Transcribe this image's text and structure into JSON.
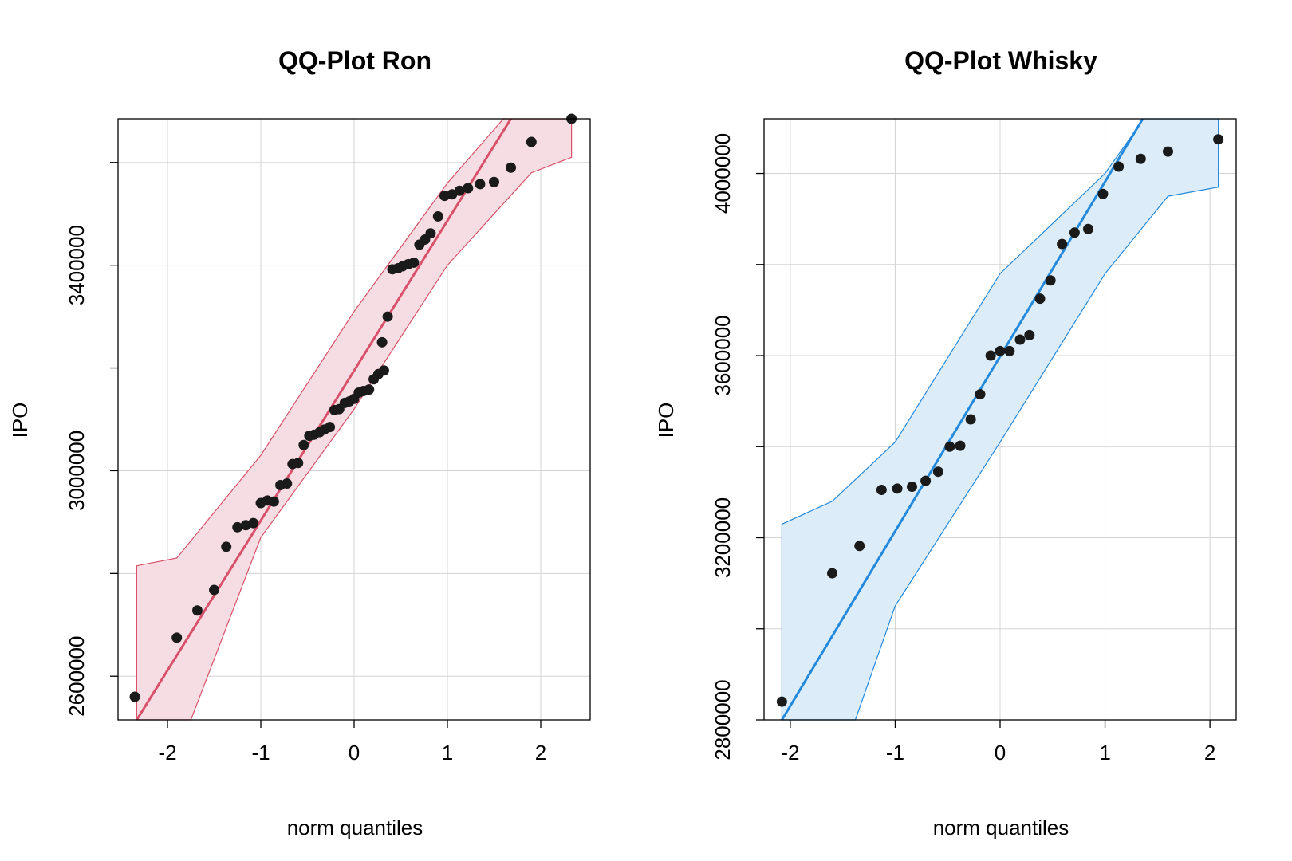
{
  "chart_data": [
    {
      "type": "scatter",
      "title": "QQ-Plot Ron",
      "xlabel": "norm quantiles",
      "ylabel": "IPO",
      "xlim": [
        -2.53,
        2.53
      ],
      "ylim": [
        2515000,
        3685000
      ],
      "xticks": [
        -2,
        -1,
        0,
        1,
        2
      ],
      "xtick_labels": [
        "-2",
        "-1",
        "0",
        "1",
        "2"
      ],
      "yticks": [
        2600000,
        3000000,
        3400000
      ],
      "ytick_labels": [
        "2600000",
        "3000000",
        "3400000"
      ],
      "grid_y": [
        2600000,
        2800000,
        3000000,
        3200000,
        3400000,
        3600000
      ],
      "grid": true,
      "color": "#d9506a",
      "band_fill": "#f6dde3",
      "reference_line": {
        "x": [
          -2.33,
          1.68
        ],
        "y": [
          2515000,
          3685000
        ]
      },
      "envelope_lower": [
        {
          "x": -2.33,
          "y": 2515000
        },
        {
          "x": -1.75,
          "y": 2515000
        },
        {
          "x": -1.0,
          "y": 2870000
        },
        {
          "x": 0.0,
          "y": 3120000
        },
        {
          "x": 1.0,
          "y": 3400000
        },
        {
          "x": 1.9,
          "y": 3580000
        },
        {
          "x": 2.33,
          "y": 3610000
        }
      ],
      "envelope_upper": [
        {
          "x": 2.33,
          "y": 3685000
        },
        {
          "x": 1.6,
          "y": 3685000
        },
        {
          "x": 1.0,
          "y": 3560000
        },
        {
          "x": 0.0,
          "y": 3310000
        },
        {
          "x": -1.0,
          "y": 3030000
        },
        {
          "x": -1.9,
          "y": 2830000
        },
        {
          "x": -2.33,
          "y": 2815000
        }
      ],
      "points": [
        {
          "x": -2.35,
          "y": 2560000
        },
        {
          "x": -1.9,
          "y": 2675000
        },
        {
          "x": -1.68,
          "y": 2728000
        },
        {
          "x": -1.5,
          "y": 2768000
        },
        {
          "x": -1.37,
          "y": 2852000
        },
        {
          "x": -1.25,
          "y": 2890000
        },
        {
          "x": -1.16,
          "y": 2894000
        },
        {
          "x": -1.08,
          "y": 2898000
        },
        {
          "x": -1.0,
          "y": 2937000
        },
        {
          "x": -0.93,
          "y": 2942000
        },
        {
          "x": -0.86,
          "y": 2940000
        },
        {
          "x": -0.79,
          "y": 2972000
        },
        {
          "x": -0.72,
          "y": 2975000
        },
        {
          "x": -0.66,
          "y": 3013000
        },
        {
          "x": -0.6,
          "y": 3015000
        },
        {
          "x": -0.54,
          "y": 3050000
        },
        {
          "x": -0.48,
          "y": 3068000
        },
        {
          "x": -0.43,
          "y": 3070000
        },
        {
          "x": -0.37,
          "y": 3075000
        },
        {
          "x": -0.32,
          "y": 3080000
        },
        {
          "x": -0.26,
          "y": 3085000
        },
        {
          "x": -0.21,
          "y": 3118000
        },
        {
          "x": -0.16,
          "y": 3120000
        },
        {
          "x": -0.1,
          "y": 3132000
        },
        {
          "x": -0.05,
          "y": 3135000
        },
        {
          "x": 0.0,
          "y": 3140000
        },
        {
          "x": 0.05,
          "y": 3152000
        },
        {
          "x": 0.1,
          "y": 3155000
        },
        {
          "x": 0.16,
          "y": 3158000
        },
        {
          "x": 0.21,
          "y": 3178000
        },
        {
          "x": 0.26,
          "y": 3188000
        },
        {
          "x": 0.32,
          "y": 3195000
        },
        {
          "x": 0.3,
          "y": 3250000
        },
        {
          "x": 0.36,
          "y": 3300000
        },
        {
          "x": 0.41,
          "y": 3392000
        },
        {
          "x": 0.47,
          "y": 3394000
        },
        {
          "x": 0.52,
          "y": 3398000
        },
        {
          "x": 0.58,
          "y": 3402000
        },
        {
          "x": 0.64,
          "y": 3405000
        },
        {
          "x": 0.7,
          "y": 3440000
        },
        {
          "x": 0.76,
          "y": 3450000
        },
        {
          "x": 0.82,
          "y": 3462000
        },
        {
          "x": 0.9,
          "y": 3495000
        },
        {
          "x": 0.97,
          "y": 3535000
        },
        {
          "x": 1.05,
          "y": 3538000
        },
        {
          "x": 1.13,
          "y": 3545000
        },
        {
          "x": 1.22,
          "y": 3550000
        },
        {
          "x": 1.35,
          "y": 3558000
        },
        {
          "x": 1.5,
          "y": 3562000
        },
        {
          "x": 1.68,
          "y": 3590000
        },
        {
          "x": 1.9,
          "y": 3640000
        },
        {
          "x": 2.33,
          "y": 3685000
        }
      ]
    },
    {
      "type": "scatter",
      "title": "QQ-Plot Whisky",
      "xlabel": "norm quantiles",
      "ylabel": "IPO",
      "xlim": [
        -2.25,
        2.25
      ],
      "ylim": [
        2800000,
        4120000
      ],
      "xticks": [
        -2,
        -1,
        0,
        1,
        2
      ],
      "xtick_labels": [
        "-2",
        "-1",
        "0",
        "1",
        "2"
      ],
      "yticks": [
        2800000,
        3200000,
        3600000,
        4000000
      ],
      "ytick_labels": [
        "2800000",
        "3200000",
        "3600000",
        "4000000"
      ],
      "grid_y": [
        2800000,
        3000000,
        3200000,
        3400000,
        3600000,
        3800000,
        4000000
      ],
      "grid": true,
      "color": "#2389dc",
      "band_fill": "#dcedf9",
      "reference_line": {
        "x": [
          -2.08,
          1.36
        ],
        "y": [
          2800000,
          4120000
        ]
      },
      "envelope_lower": [
        {
          "x": -2.08,
          "y": 2800000
        },
        {
          "x": -1.38,
          "y": 2800000
        },
        {
          "x": -1.0,
          "y": 3050000
        },
        {
          "x": 0.0,
          "y": 3410000
        },
        {
          "x": 1.0,
          "y": 3780000
        },
        {
          "x": 1.6,
          "y": 3950000
        },
        {
          "x": 2.08,
          "y": 3970000
        }
      ],
      "envelope_upper": [
        {
          "x": 2.08,
          "y": 4120000
        },
        {
          "x": 1.37,
          "y": 4120000
        },
        {
          "x": 1.0,
          "y": 4000000
        },
        {
          "x": 0.0,
          "y": 3780000
        },
        {
          "x": -1.0,
          "y": 3410000
        },
        {
          "x": -1.6,
          "y": 3280000
        },
        {
          "x": -2.08,
          "y": 3230000
        }
      ],
      "points": [
        {
          "x": -2.08,
          "y": 2840000
        },
        {
          "x": -1.6,
          "y": 3122000
        },
        {
          "x": -1.34,
          "y": 3182000
        },
        {
          "x": -1.13,
          "y": 3305000
        },
        {
          "x": -0.98,
          "y": 3308000
        },
        {
          "x": -0.84,
          "y": 3312000
        },
        {
          "x": -0.71,
          "y": 3325000
        },
        {
          "x": -0.59,
          "y": 3345000
        },
        {
          "x": -0.48,
          "y": 3400000
        },
        {
          "x": -0.38,
          "y": 3402000
        },
        {
          "x": -0.28,
          "y": 3460000
        },
        {
          "x": -0.19,
          "y": 3515000
        },
        {
          "x": -0.09,
          "y": 3600000
        },
        {
          "x": 0.0,
          "y": 3610000
        },
        {
          "x": 0.09,
          "y": 3610000
        },
        {
          "x": 0.19,
          "y": 3635000
        },
        {
          "x": 0.28,
          "y": 3645000
        },
        {
          "x": 0.38,
          "y": 3725000
        },
        {
          "x": 0.48,
          "y": 3765000
        },
        {
          "x": 0.59,
          "y": 3845000
        },
        {
          "x": 0.71,
          "y": 3870000
        },
        {
          "x": 0.84,
          "y": 3878000
        },
        {
          "x": 0.98,
          "y": 3955000
        },
        {
          "x": 1.13,
          "y": 4015000
        },
        {
          "x": 1.34,
          "y": 4032000
        },
        {
          "x": 1.6,
          "y": 4048000
        },
        {
          "x": 2.08,
          "y": 4075000
        }
      ]
    }
  ]
}
